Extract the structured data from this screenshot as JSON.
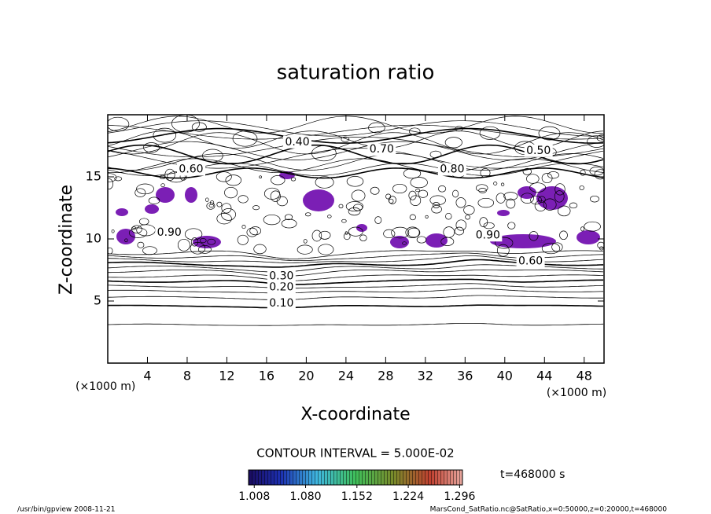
{
  "chart_data": {
    "type": "contour",
    "title": "saturation ratio",
    "x_label": "X-coordinate",
    "y_label": "Z-coordinate",
    "x_unit": "(×1000 m)",
    "y_unit": "(×1000 m)",
    "xlim": [
      0,
      50
    ],
    "ylim": [
      0,
      20
    ],
    "xticks": [
      4,
      8,
      12,
      16,
      20,
      24,
      28,
      32,
      36,
      40,
      44,
      48
    ],
    "yticks": [
      5,
      10,
      15
    ],
    "contour_labels": [
      {
        "value": 0.1,
        "label": "0.10",
        "x": 17.5,
        "y": 4.8
      },
      {
        "value": 0.2,
        "label": "0.20",
        "x": 17.5,
        "y": 6.1
      },
      {
        "value": 0.3,
        "label": "0.30",
        "x": 17.5,
        "y": 7.0
      },
      {
        "value": 0.4,
        "label": "0.40",
        "x": 19.1,
        "y": 17.8
      },
      {
        "value": 0.5,
        "label": "0.50",
        "x": 43.4,
        "y": 17.1
      },
      {
        "value": 0.6,
        "label": "0.60",
        "x": 8.4,
        "y": 15.6
      },
      {
        "value": 0.7,
        "label": "0.70",
        "x": 27.6,
        "y": 17.2
      },
      {
        "value": 0.8,
        "label": "0.80",
        "x": 34.7,
        "y": 15.6
      },
      {
        "value": 0.9,
        "label": "0.90",
        "x": 6.2,
        "y": 10.5
      },
      {
        "value": 0.9,
        "label": "0.90",
        "x": 38.3,
        "y": 10.3
      },
      {
        "value": 0.6,
        "label": "0.60",
        "x": 42.6,
        "y": 8.2
      }
    ],
    "contour_interval": "CONTOUR INTERVAL = 5.000E-02",
    "shade_color": "#7b1fb5",
    "colorbar": {
      "lim": [
        1.0,
        1.3
      ],
      "ticks": [
        1.008,
        {
          "value": 1.08,
          "label": "1.080"
        },
        1.152,
        1.224,
        1.296
      ]
    },
    "time_label": "t=468000 s",
    "footer_left": "/usr/bin/gpview   2008-11-21",
    "footer_right": "MarsCond_SatRatio.nc@SatRatio,x=0:50000,z=0:20000,t=468000"
  }
}
